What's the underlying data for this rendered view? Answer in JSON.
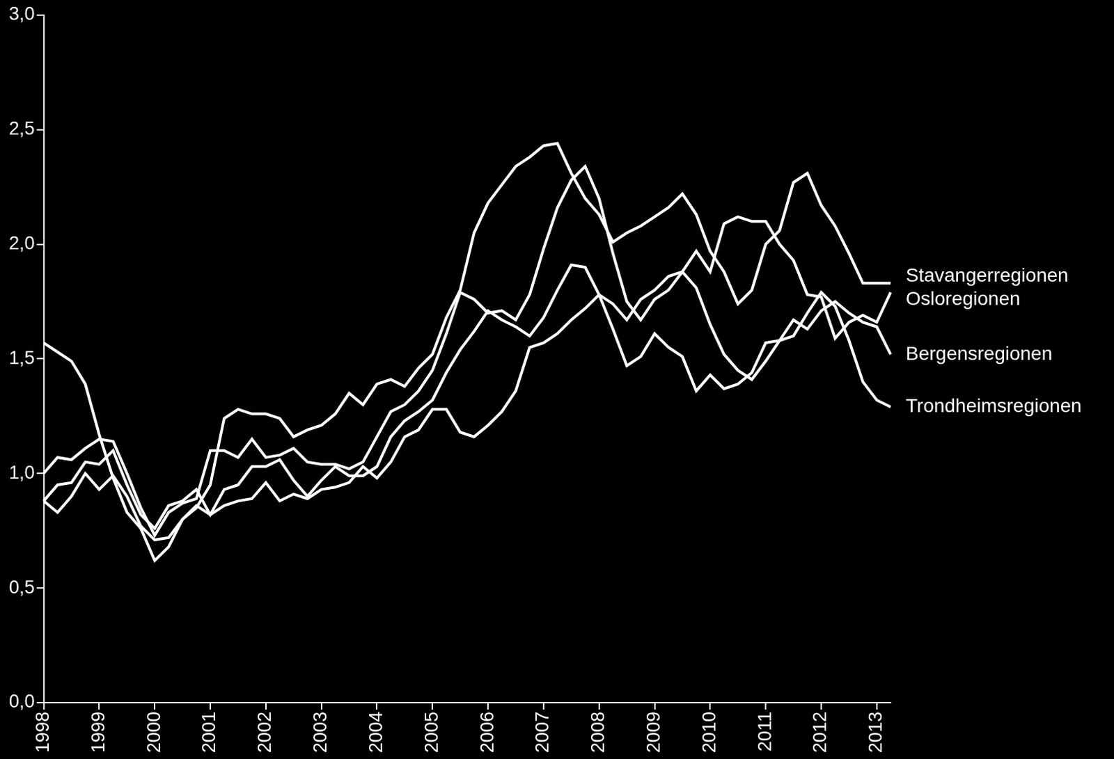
{
  "chart_data": {
    "type": "line",
    "categories": [
      "1998",
      null,
      null,
      null,
      "1999",
      null,
      null,
      null,
      "2000",
      null,
      null,
      null,
      "2001",
      null,
      null,
      null,
      "2002",
      null,
      null,
      null,
      "2003",
      null,
      null,
      null,
      "2004",
      null,
      null,
      null,
      "2005",
      null,
      null,
      null,
      "2006",
      null,
      null,
      null,
      "2007",
      null,
      null,
      null,
      "2008",
      null,
      null,
      null,
      "2009",
      null,
      null,
      null,
      "2010",
      null,
      null,
      null,
      "2011",
      null,
      null,
      null,
      "2012",
      null,
      null,
      null,
      "2013",
      null
    ],
    "series": [
      {
        "name": "Stavangerregionen",
        "color": "#ffffff",
        "values": [
          1.57,
          1.53,
          1.49,
          1.39,
          1.17,
          0.98,
          0.83,
          0.76,
          0.62,
          0.68,
          0.8,
          0.85,
          0.95,
          1.24,
          1.28,
          1.26,
          1.26,
          1.24,
          1.16,
          1.19,
          1.21,
          1.26,
          1.35,
          1.3,
          1.39,
          1.41,
          1.38,
          1.46,
          1.52,
          1.68,
          1.8,
          2.05,
          2.18,
          2.26,
          2.34,
          2.38,
          2.43,
          2.44,
          2.31,
          2.2,
          2.13,
          2.01,
          2.05,
          2.08,
          2.12,
          2.16,
          2.22,
          2.13,
          1.97,
          1.88,
          1.74,
          1.8,
          2.0,
          2.06,
          2.27,
          2.31,
          2.17,
          2.08,
          1.96,
          1.83,
          1.83,
          1.83
        ]
      },
      {
        "name": "Osloregionen",
        "color": "#ffffff",
        "values": [
          0.88,
          0.83,
          0.9,
          1.0,
          0.93,
          0.99,
          0.9,
          0.77,
          0.71,
          0.72,
          0.8,
          0.86,
          0.82,
          0.86,
          0.88,
          0.89,
          0.96,
          0.88,
          0.91,
          0.89,
          0.93,
          0.94,
          0.96,
          1.03,
          0.98,
          1.05,
          1.16,
          1.19,
          1.28,
          1.28,
          1.18,
          1.16,
          1.21,
          1.27,
          1.36,
          1.55,
          1.57,
          1.61,
          1.67,
          1.72,
          1.78,
          1.74,
          1.67,
          1.76,
          1.8,
          1.86,
          1.88,
          1.97,
          1.88,
          2.09,
          2.12,
          2.1,
          2.1,
          2.0,
          1.93,
          1.78,
          1.77,
          1.59,
          1.66,
          1.69,
          1.66,
          1.79
        ]
      },
      {
        "name": "Bergensregionen",
        "color": "#ffffff",
        "values": [
          0.88,
          0.95,
          0.96,
          1.05,
          1.04,
          1.1,
          0.95,
          0.82,
          0.76,
          0.86,
          0.88,
          0.93,
          0.82,
          0.93,
          0.95,
          1.03,
          1.03,
          1.06,
          0.97,
          0.9,
          0.97,
          1.03,
          0.99,
          0.99,
          1.03,
          1.16,
          1.23,
          1.27,
          1.32,
          1.44,
          1.54,
          1.62,
          1.71,
          1.67,
          1.64,
          1.6,
          1.68,
          1.8,
          1.91,
          1.9,
          1.78,
          1.63,
          1.47,
          1.51,
          1.61,
          1.55,
          1.51,
          1.36,
          1.43,
          1.37,
          1.39,
          1.44,
          1.57,
          1.58,
          1.67,
          1.63,
          1.71,
          1.75,
          1.7,
          1.66,
          1.64,
          1.52
        ]
      },
      {
        "name": "Trondheimsregionen",
        "color": "#ffffff",
        "values": [
          1.0,
          1.07,
          1.06,
          1.11,
          1.15,
          1.14,
          1.0,
          0.85,
          0.73,
          0.83,
          0.87,
          0.89,
          1.1,
          1.1,
          1.07,
          1.15,
          1.07,
          1.08,
          1.11,
          1.05,
          1.04,
          1.04,
          1.02,
          1.05,
          1.16,
          1.27,
          1.3,
          1.36,
          1.45,
          1.61,
          1.79,
          1.76,
          1.7,
          1.71,
          1.67,
          1.78,
          1.98,
          2.16,
          2.28,
          2.34,
          2.2,
          1.96,
          1.75,
          1.67,
          1.76,
          1.8,
          1.88,
          1.81,
          1.65,
          1.52,
          1.45,
          1.41,
          1.49,
          1.58,
          1.6,
          1.7,
          1.79,
          1.73,
          1.58,
          1.4,
          1.32,
          1.29
        ]
      }
    ],
    "ylim": [
      0,
      3
    ],
    "yticks": [
      {
        "value": 0,
        "label": "0,0"
      },
      {
        "value": 0.5,
        "label": "0,5"
      },
      {
        "value": 1,
        "label": "1,0"
      },
      {
        "value": 1.5,
        "label": "1,5"
      },
      {
        "value": 2,
        "label": "2,0"
      },
      {
        "value": 2.5,
        "label": "2,5"
      },
      {
        "value": 3,
        "label": "3,0"
      }
    ],
    "grid": false
  }
}
